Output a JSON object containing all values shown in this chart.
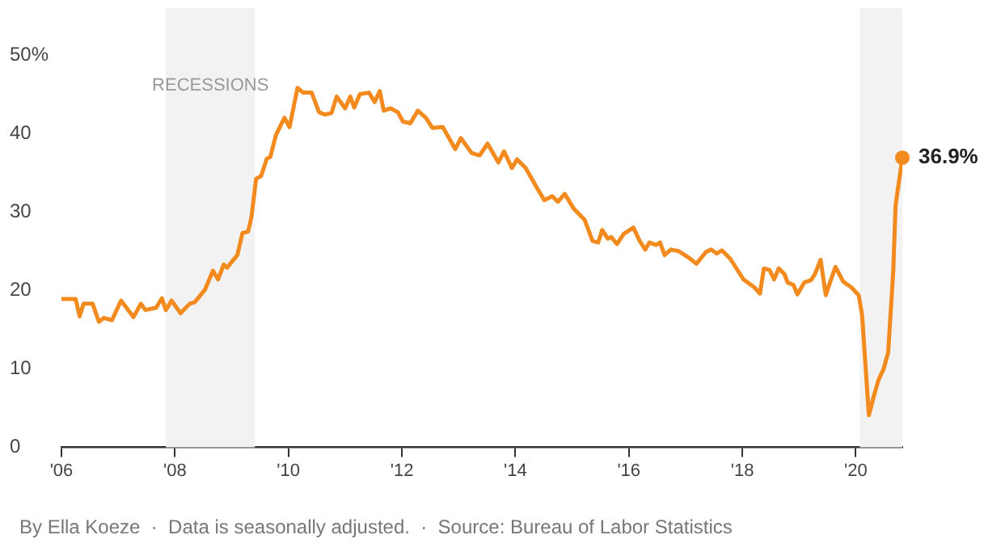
{
  "chart_data": {
    "type": "line",
    "x": [
      2006.0,
      2006.25,
      2006.32,
      2006.39,
      2006.55,
      2006.66,
      2006.75,
      2006.89,
      2007.05,
      2007.27,
      2007.4,
      2007.48,
      2007.67,
      2007.77,
      2007.84,
      2007.94,
      2008.1,
      2008.26,
      2008.35,
      2008.53,
      2008.67,
      2008.76,
      2008.86,
      2008.92,
      2009.1,
      2009.19,
      2009.29,
      2009.35,
      2009.43,
      2009.52,
      2009.62,
      2009.68,
      2009.78,
      2009.93,
      2010.02,
      2010.16,
      2010.26,
      2010.41,
      2010.54,
      2010.64,
      2010.76,
      2010.85,
      2011.0,
      2011.09,
      2011.16,
      2011.26,
      2011.42,
      2011.52,
      2011.61,
      2011.68,
      2011.8,
      2011.93,
      2012.02,
      2012.15,
      2012.28,
      2012.42,
      2012.54,
      2012.72,
      2012.94,
      2013.04,
      2013.23,
      2013.37,
      2013.51,
      2013.7,
      2013.8,
      2013.94,
      2014.03,
      2014.18,
      2014.37,
      2014.51,
      2014.65,
      2014.75,
      2014.87,
      2015.03,
      2015.22,
      2015.36,
      2015.46,
      2015.53,
      2015.63,
      2015.69,
      2015.79,
      2015.91,
      2016.08,
      2016.19,
      2016.29,
      2016.36,
      2016.48,
      2016.55,
      2016.63,
      2016.74,
      2016.88,
      2017.05,
      2017.19,
      2017.36,
      2017.45,
      2017.55,
      2017.64,
      2017.79,
      2018.02,
      2018.21,
      2018.31,
      2018.38,
      2018.48,
      2018.56,
      2018.64,
      2018.74,
      2018.8,
      2018.9,
      2018.97,
      2019.09,
      2019.21,
      2019.28,
      2019.38,
      2019.47,
      2019.54,
      2019.64,
      2019.78,
      2019.92,
      2020.05,
      2020.11,
      2020.23,
      2020.32,
      2020.4,
      2020.49,
      2020.57,
      2020.66,
      2020.7,
      2020.82
    ],
    "series": [
      {
        "color": "#f28a1e",
        "values": [
          18.9,
          18.9,
          16.7,
          18.3,
          18.3,
          16.0,
          16.5,
          16.2,
          18.7,
          16.6,
          18.3,
          17.5,
          17.8,
          19.0,
          17.5,
          18.7,
          17.1,
          18.3,
          18.5,
          20.1,
          22.5,
          21.4,
          23.3,
          22.9,
          24.5,
          27.3,
          27.5,
          29.4,
          34.2,
          34.6,
          36.8,
          37.0,
          39.8,
          42.0,
          40.8,
          45.8,
          45.2,
          45.2,
          42.7,
          42.4,
          42.6,
          44.7,
          43.2,
          44.7,
          43.3,
          45.0,
          45.2,
          44.0,
          45.4,
          42.9,
          43.2,
          42.7,
          41.5,
          41.3,
          42.9,
          42.0,
          40.7,
          40.8,
          38.0,
          39.4,
          37.5,
          37.2,
          38.7,
          36.3,
          37.7,
          35.6,
          36.7,
          35.6,
          33.2,
          31.5,
          32.0,
          31.3,
          32.3,
          30.4,
          29.0,
          26.3,
          26.1,
          27.7,
          26.6,
          26.8,
          25.9,
          27.2,
          28.0,
          26.3,
          25.2,
          26.1,
          25.8,
          26.1,
          24.5,
          25.2,
          25.0,
          24.2,
          23.4,
          24.9,
          25.2,
          24.7,
          25.1,
          24.0,
          21.4,
          20.4,
          19.6,
          22.8,
          22.6,
          21.4,
          22.8,
          22.1,
          21.0,
          20.7,
          19.5,
          21.0,
          21.3,
          22.1,
          23.9,
          19.4,
          20.9,
          23.0,
          21.1,
          20.4,
          19.4,
          16.9,
          4.1,
          6.6,
          8.6,
          10.0,
          12.1,
          22.5,
          30.8,
          36.9
        ]
      }
    ],
    "xlim": [
      2006,
      2020.82
    ],
    "xticks": [
      {
        "value": 2006,
        "label": "'06"
      },
      {
        "value": 2008,
        "label": "'08"
      },
      {
        "value": 2010,
        "label": "'10"
      },
      {
        "value": 2012,
        "label": "'12"
      },
      {
        "value": 2014,
        "label": "'14"
      },
      {
        "value": 2016,
        "label": "'16"
      },
      {
        "value": 2018,
        "label": "'18"
      },
      {
        "value": 2020,
        "label": "'20"
      }
    ],
    "ylim": [
      0,
      50
    ],
    "yticks": [
      0,
      10,
      20,
      30,
      40,
      {
        "value": 50,
        "label": "50%"
      }
    ],
    "bands": [
      {
        "axis": "x",
        "from": 2007.84,
        "to": 2009.41,
        "label": "RECESSIONS",
        "color": "#f2f2f2"
      },
      {
        "axis": "x",
        "from": 2020.07,
        "to": 2020.82,
        "color": "#f2f2f2"
      }
    ],
    "annotations": [
      {
        "text": "36.9%",
        "x": 2020.82,
        "y": 36.9
      },
      "By Ella Koeze  ·  Data is seasonally adjusted.  ·  Source: Bureau of Labor Statistics"
    ],
    "grid": false,
    "legend": false,
    "marker": "none",
    "line_style": "solid"
  }
}
